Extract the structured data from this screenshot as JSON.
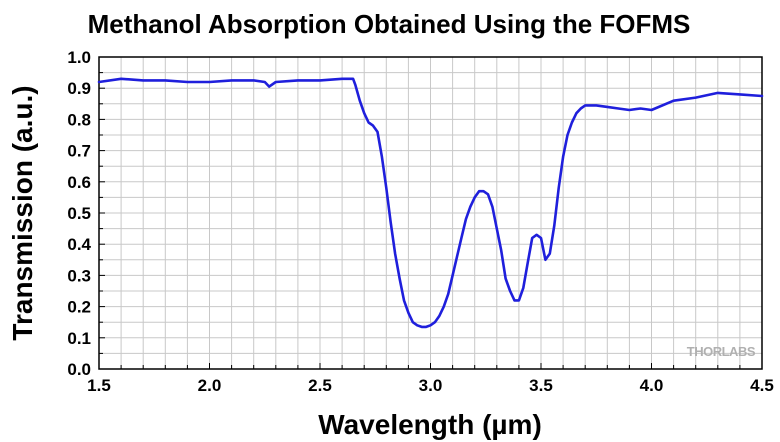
{
  "chart_data": {
    "type": "line",
    "title": "Methanol Absorption Obtained Using the FOFMS",
    "xlabel": "Wavelength (µm)",
    "ylabel": "Transmission (a.u.)",
    "xlim": [
      1.5,
      4.5
    ],
    "ylim": [
      0.0,
      1.0
    ],
    "xticks": [
      "1.5",
      "2.0",
      "2.5",
      "3.0",
      "3.5",
      "4.0",
      "4.5"
    ],
    "yticks": [
      "0.0",
      "0.1",
      "0.2",
      "0.3",
      "0.4",
      "0.5",
      "0.6",
      "0.7",
      "0.8",
      "0.9",
      "1.0"
    ],
    "grid": true,
    "watermark": "THORLABS",
    "colors": {
      "line": "#1f1fdc",
      "grid": "#c8c8c8",
      "frame": "#000000"
    },
    "series": [
      {
        "x": [
          1.5,
          1.6,
          1.7,
          1.8,
          1.9,
          2.0,
          2.1,
          2.2,
          2.25,
          2.27,
          2.3,
          2.4,
          2.5,
          2.6,
          2.65,
          2.66,
          2.68,
          2.7,
          2.72,
          2.74,
          2.76,
          2.78,
          2.8,
          2.82,
          2.84,
          2.86,
          2.88,
          2.9,
          2.92,
          2.94,
          2.96,
          2.98,
          3.0,
          3.02,
          3.04,
          3.06,
          3.08,
          3.1,
          3.12,
          3.14,
          3.16,
          3.18,
          3.2,
          3.22,
          3.24,
          3.26,
          3.28,
          3.3,
          3.32,
          3.34,
          3.36,
          3.38,
          3.4,
          3.42,
          3.44,
          3.46,
          3.48,
          3.5,
          3.52,
          3.54,
          3.56,
          3.58,
          3.6,
          3.62,
          3.64,
          3.66,
          3.68,
          3.7,
          3.75,
          3.8,
          3.85,
          3.9,
          3.95,
          4.0,
          4.1,
          4.2,
          4.3,
          4.4,
          4.5
        ],
        "y": [
          0.92,
          0.93,
          0.925,
          0.925,
          0.92,
          0.92,
          0.925,
          0.925,
          0.92,
          0.905,
          0.92,
          0.925,
          0.925,
          0.93,
          0.93,
          0.91,
          0.86,
          0.82,
          0.79,
          0.78,
          0.76,
          0.68,
          0.58,
          0.47,
          0.37,
          0.29,
          0.22,
          0.18,
          0.15,
          0.14,
          0.135,
          0.135,
          0.14,
          0.15,
          0.17,
          0.2,
          0.24,
          0.3,
          0.36,
          0.42,
          0.48,
          0.52,
          0.55,
          0.57,
          0.57,
          0.56,
          0.52,
          0.45,
          0.38,
          0.29,
          0.25,
          0.22,
          0.22,
          0.26,
          0.34,
          0.42,
          0.43,
          0.42,
          0.35,
          0.37,
          0.46,
          0.58,
          0.68,
          0.75,
          0.79,
          0.82,
          0.835,
          0.845,
          0.845,
          0.84,
          0.835,
          0.83,
          0.835,
          0.83,
          0.86,
          0.87,
          0.885,
          0.88,
          0.875
        ]
      }
    ]
  }
}
